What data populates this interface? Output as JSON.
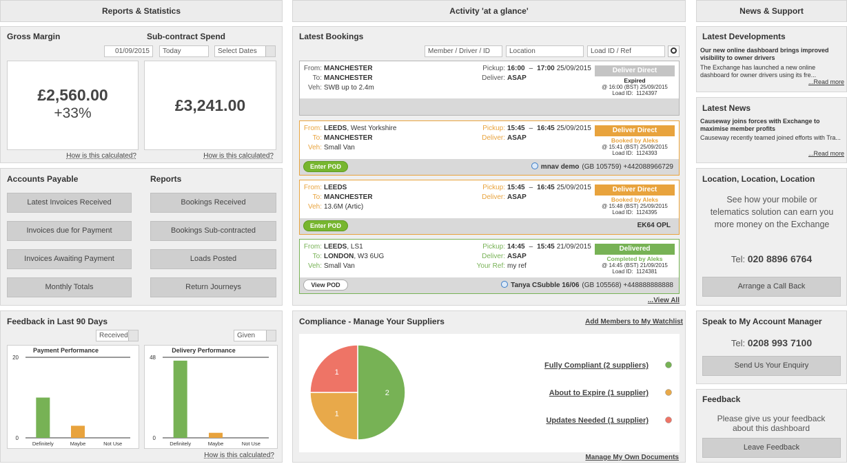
{
  "reports": {
    "header": "Reports & Statistics",
    "gross_margin": {
      "title": "Gross Margin",
      "value": "£2,560.00",
      "change": "+33%",
      "link": "How is this calculated?"
    },
    "subcontract": {
      "title": "Sub-contract Spend",
      "value": "£3,241.00",
      "link": "How is this calculated?"
    },
    "date_from": "01/09/2015",
    "date_to": "Today",
    "date_select": "Select Dates",
    "accounts_payable": {
      "title": "Accounts Payable",
      "buttons": [
        "Latest Invoices Received",
        "Invoices due for Payment",
        "Invoices Awaiting Payment",
        "Monthly Totals"
      ]
    },
    "reports_list": {
      "title": "Reports",
      "buttons": [
        "Bookings Received",
        "Bookings Sub-contracted",
        "Loads Posted",
        "Return Journeys"
      ]
    },
    "feedback": {
      "title": "Feedback in Last 90 Days",
      "received": "Received",
      "given": "Given",
      "link": "How is this calculated?",
      "charts": [
        {
          "type": "bar",
          "title": "Payment Performance",
          "categories": [
            "Definitely",
            "Maybe",
            "Not Use"
          ],
          "values": [
            10,
            3,
            0
          ],
          "colors": [
            "#77b255",
            "#e8a33d",
            "#d9534f"
          ],
          "ylim": [
            0,
            20
          ],
          "yticks": [
            0,
            20
          ]
        },
        {
          "type": "bar",
          "title": "Delivery Performance",
          "categories": [
            "Definitely",
            "Maybe",
            "Not Use"
          ],
          "values": [
            46,
            3,
            0
          ],
          "colors": [
            "#77b255",
            "#e8a33d",
            "#d9534f"
          ],
          "ylim": [
            0,
            48
          ],
          "yticks": [
            0,
            48
          ]
        }
      ]
    }
  },
  "activity": {
    "header": "Activity 'at a glance'",
    "bookings_title": "Latest Bookings",
    "search": [
      "Member / Driver / ID",
      "Location",
      "Load ID / Ref"
    ],
    "labels": {
      "from": "From:",
      "to": "To:",
      "veh": "Veh:",
      "pickup": "Pickup:",
      "deliver": "Deliver:",
      "dash": "–"
    },
    "bookings": [
      {
        "from": "MANCHESTER",
        "to": "MANCHESTER",
        "veh": "SWB up to 2.4m",
        "pickup_from": "16:00",
        "pickup_to": "17:00",
        "pickup_date": "25/09/2015",
        "deliver": "ASAP",
        "status": "Deliver Direct",
        "state": "Expired",
        "time": "@ 16:00 (BST) 25/09/2015",
        "load_id": "Load ID:  1124397",
        "color": "#b5b5b5",
        "status_color": "#c4c4c4"
      },
      {
        "from": "LEEDS",
        "from_extra": ", West Yorkshire",
        "to": "MANCHESTER",
        "veh": "Small Van",
        "pickup_from": "15:45",
        "pickup_to": "16:45",
        "pickup_date": "25/09/2015",
        "deliver": "ASAP",
        "status": "Deliver Direct",
        "state": "Booked by Aleks",
        "time": "@ 15:41 (BST) 25/09/2015",
        "load_id": "Load ID:  1124393",
        "button": "Enter POD",
        "contact": "mnav demo",
        "contact_extra": "(GB 105759) +442088966729",
        "color": "#e8a33d",
        "status_color": "#e8a33d"
      },
      {
        "from": "LEEDS",
        "to": "MANCHESTER",
        "veh": "13.6M (Artic)",
        "pickup_from": "15:45",
        "pickup_to": "16:45",
        "pickup_date": "25/09/2015",
        "deliver": "ASAP",
        "status": "Deliver Direct",
        "state": "Booked by Aleks",
        "time": "@ 15:48 (BST) 25/09/2015",
        "load_id": "Load ID:  1124395",
        "button": "Enter POD",
        "contact": "EK64 OPL",
        "color": "#e8a33d",
        "status_color": "#e8a33d"
      },
      {
        "from": "LEEDS",
        "from_extra": ", LS1",
        "to": "LONDON",
        "to_extra": ", W3 6UG",
        "veh": "Small Van",
        "pickup_from": "14:45",
        "pickup_to": "15:45",
        "pickup_date": "21/09/2015",
        "deliver": "ASAP",
        "ref_label": "Your Ref:",
        "ref": "my ref",
        "status": "Delivered",
        "state": "Completed by Aleks",
        "time": "@ 14:45 (BST) 21/09/2015",
        "load_id": "Load ID:  1124381",
        "button": "View POD",
        "contact": "Tanya CSubble 16/06",
        "contact_extra": "(GB 105568) +448888888888",
        "color": "#77b255",
        "status_color": "#77b255"
      }
    ],
    "view_all": "...View All",
    "compliance": {
      "title": "Compliance - Manage Your Suppliers",
      "watchlist": "Add Members to My Watchlist",
      "documents": "Manage My Own Documents",
      "chart": {
        "type": "pie",
        "values": [
          2,
          1,
          1
        ],
        "colors": [
          "#77b255",
          "#e8a94a",
          "#ee7466"
        ],
        "labels": [
          "Fully Compliant (2 suppliers)",
          "About to Expire (1 supplier)",
          "Updates Needed (1 supplier)"
        ]
      }
    }
  },
  "news": {
    "header": "News & Support",
    "developments": {
      "title": "Latest Developments",
      "headline": "Our new online dashboard brings improved visibility to owner drivers",
      "text": "The Exchange has launched a new online dashboard for owner drivers using its fre...",
      "link": "...Read more"
    },
    "latest_news": {
      "title": "Latest News",
      "headline": "Causeway joins forces with Exchange to maximise member profits",
      "text": "Causeway recently teamed joined efforts with Tra...",
      "link": "...Read more"
    },
    "location": {
      "title": "Location, Location, Location",
      "text": "See how your mobile or telematics solution can earn you more money on the Exchange",
      "tel_label": "Tel:",
      "tel": "020 8896 6764",
      "button": "Arrange a Call Back"
    },
    "manager": {
      "title": "Speak to My Account Manager",
      "tel_label": "Tel:",
      "tel": "0208 993 7100",
      "button": "Send Us Your Enquiry"
    },
    "feedback": {
      "title": "Feedback",
      "text": "Please give us your feedback about this dashboard",
      "button": "Leave Feedback"
    }
  }
}
